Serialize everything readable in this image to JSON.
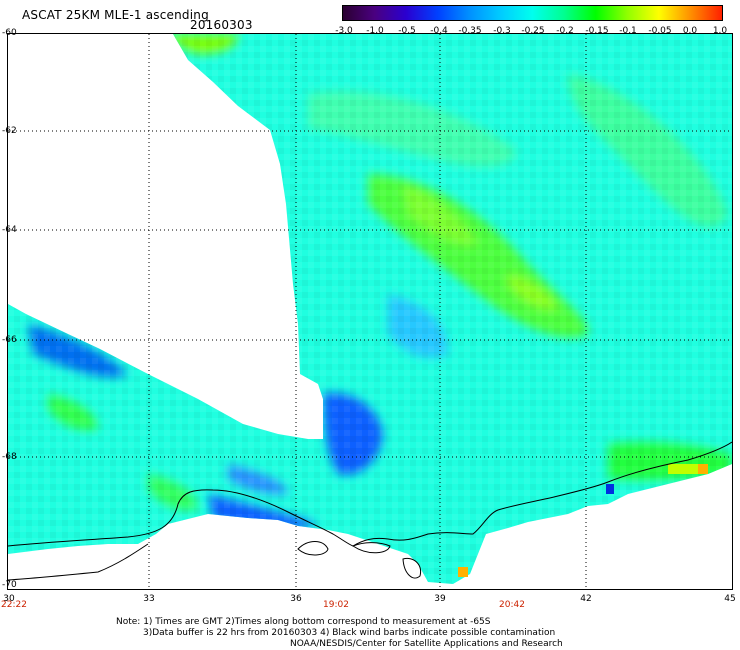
{
  "title": {
    "product": "ASCAT 25KM MLE-1 ascending",
    "date": "20160303"
  },
  "colorbar": {
    "labels": [
      "-3.0",
      "-1.0",
      "-0.5",
      "-0.4",
      "-0.35",
      "-0.3",
      "-0.25",
      "-0.2",
      "-0.15",
      "-0.1",
      "-0.05",
      "0.0",
      "1.0"
    ],
    "colors": [
      "#2a0030",
      "#4a0080",
      "#2a00d0",
      "#0040ff",
      "#0090ff",
      "#00ccff",
      "#00ffee",
      "#00ff90",
      "#00ff00",
      "#90ff00",
      "#ffff00",
      "#ff9000",
      "#ff2000"
    ]
  },
  "map": {
    "lat_labels": [
      "-60",
      "-62",
      "-64",
      "-66",
      "-68",
      "-70"
    ],
    "lon_labels": [
      "30",
      "33",
      "36",
      "39",
      "42",
      "45"
    ],
    "time_labels": [
      "22:22",
      "19:02",
      "20:42"
    ]
  },
  "notes": {
    "line1": "Note: 1) Times are GMT 2)Times along bottom correspond to measurement at -65S",
    "line2": "3)Data buffer is 22 hrs from 20160303 4) Black wind barbs indicate possible contamination",
    "line3": "NOAA/NESDIS/Center for Satellite Applications and Research"
  },
  "colors": {
    "grid": "#000000",
    "coastline": "#000000",
    "time_text": "#cc2200"
  }
}
